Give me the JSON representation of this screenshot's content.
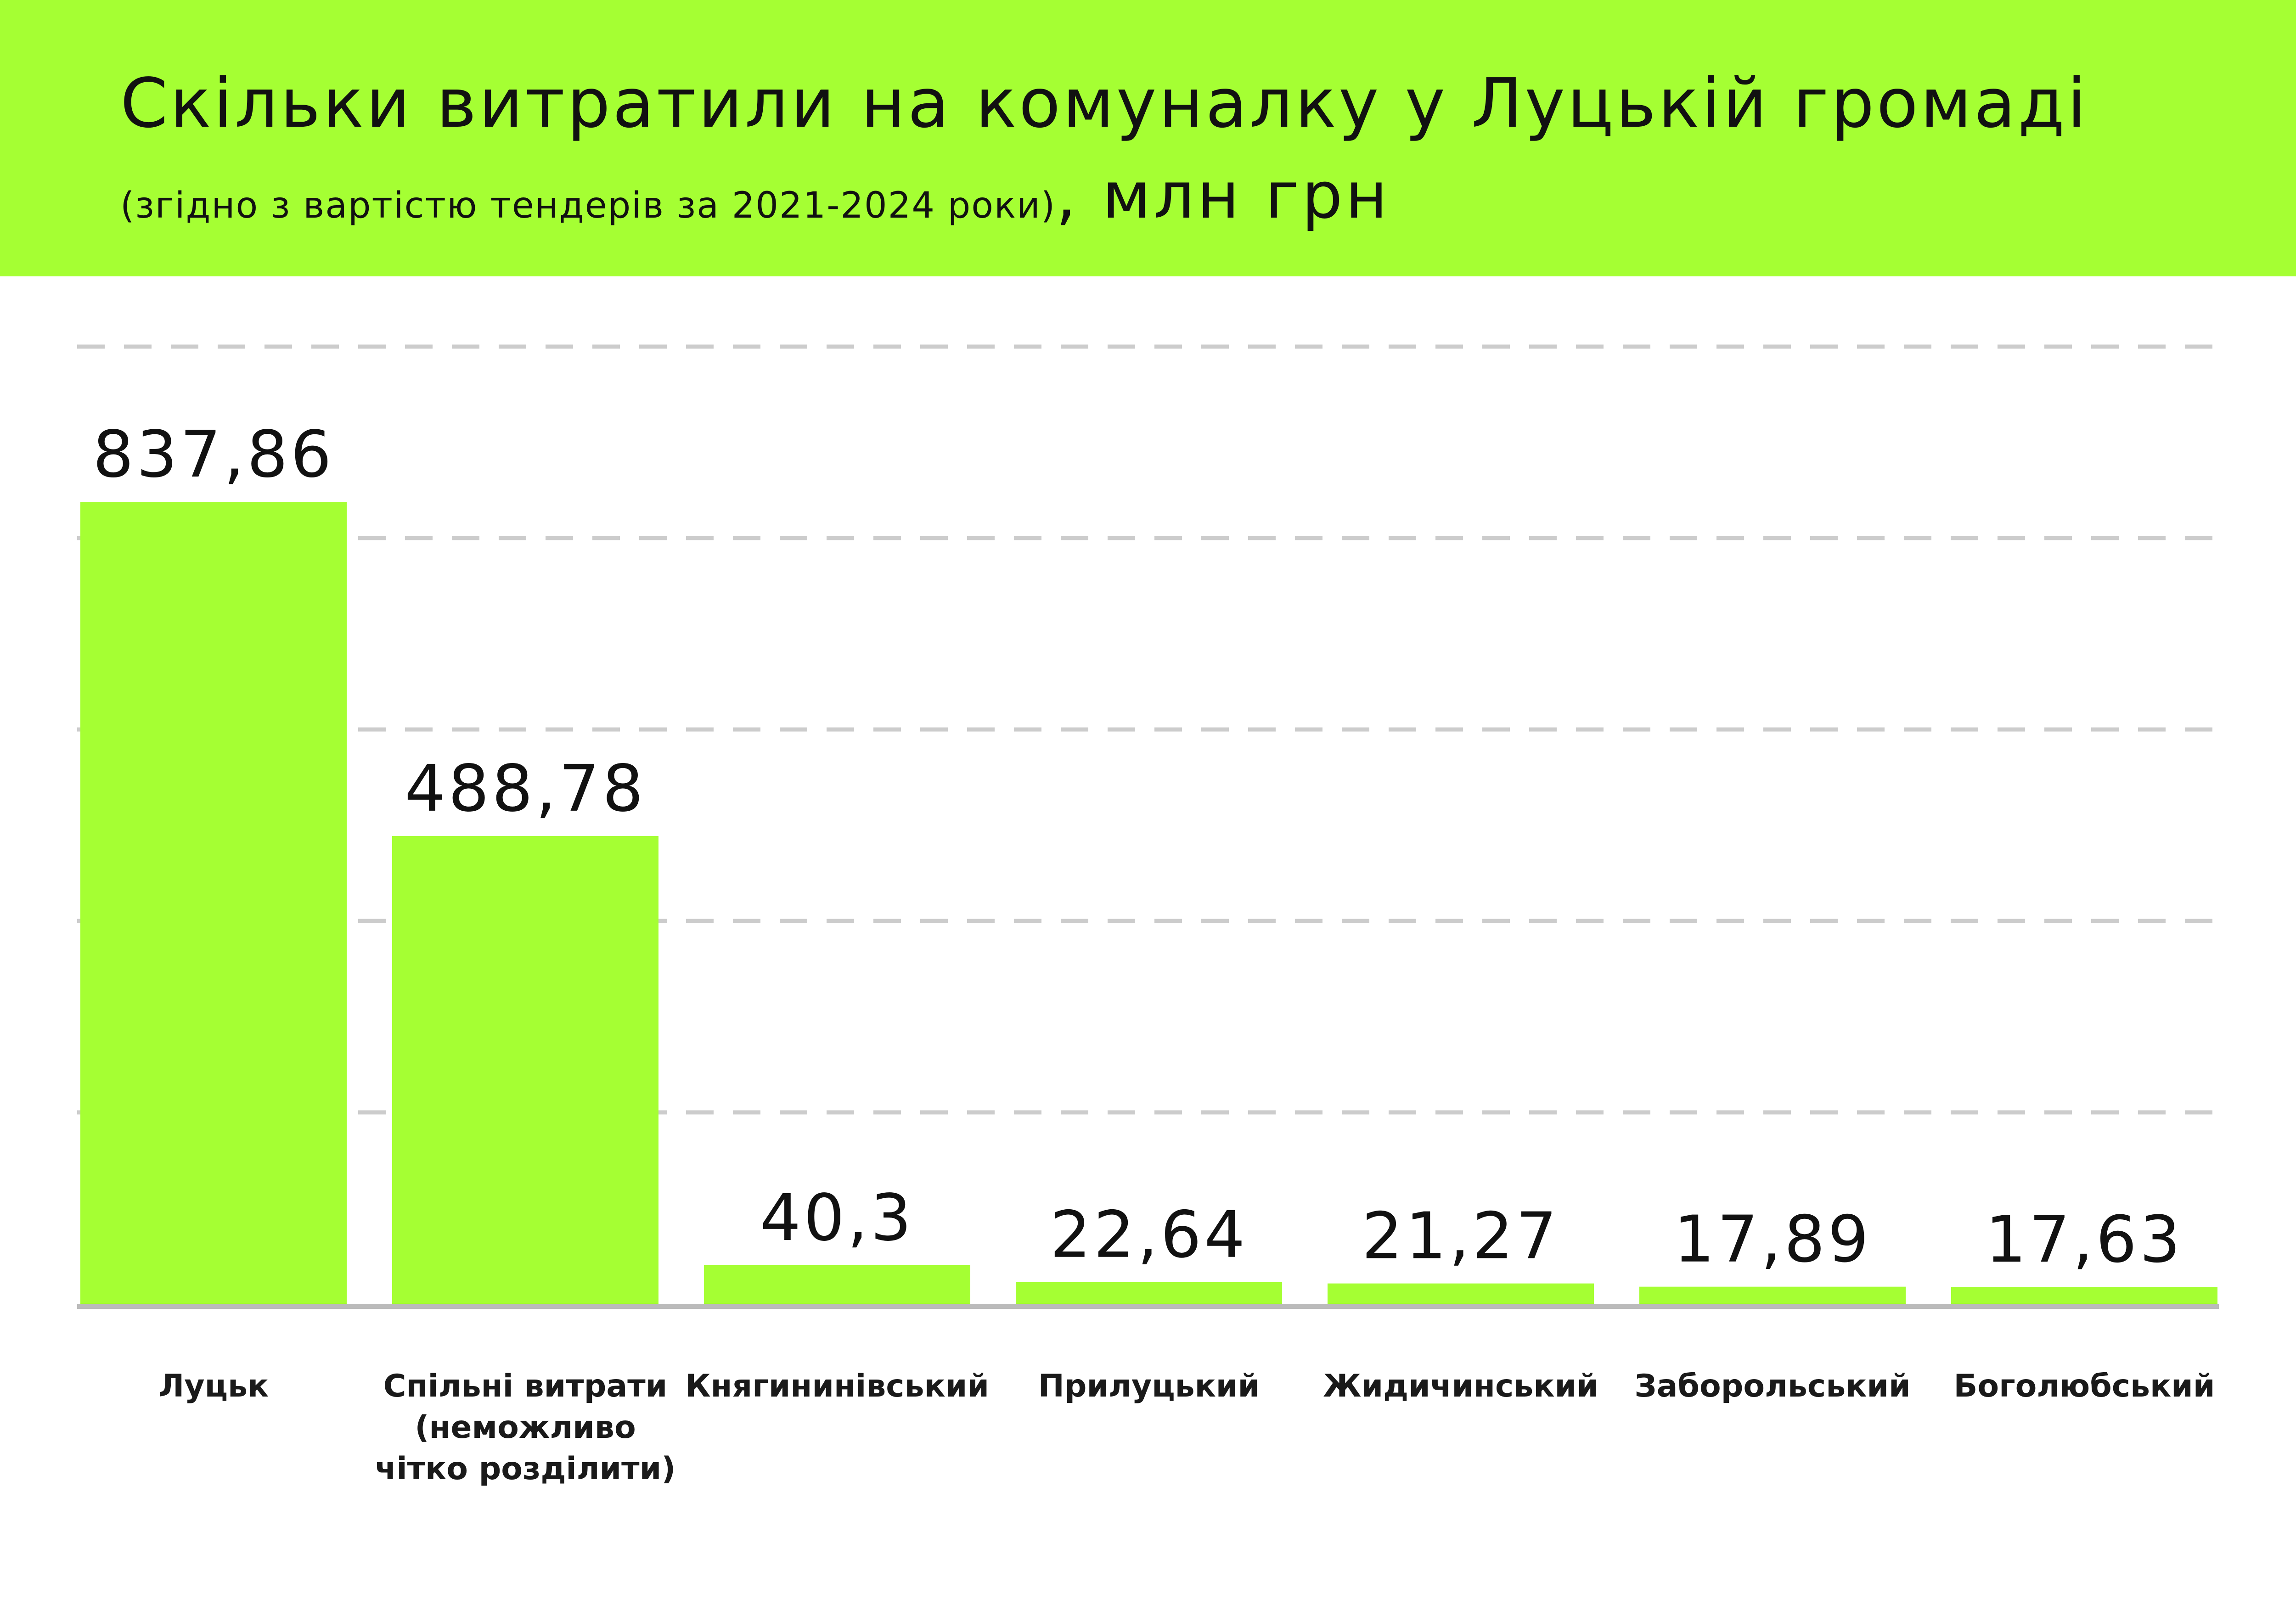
{
  "header": {
    "title": "Скільки витратили на комуналку у Луцькій громаді",
    "subtitle_note": "(згідно з вартістю тендерів за 2021-2024 роки)",
    "subtitle_unit": ", млн грн"
  },
  "colors": {
    "accent": "#a5ff33",
    "grid": "#cccccc",
    "text": "#111111"
  },
  "chart_data": {
    "type": "bar",
    "title": "Скільки витратили на комуналку у Луцькій громаді",
    "subtitle": "(згідно з вартістю тендерів за 2021-2024 роки), млн грн",
    "categories": [
      "Луцьк",
      "Спільні витрати (неможливо чітко розділити)",
      "Княгининівський",
      "Прилуцький",
      "Жидичинський",
      "Заборольський",
      "Боголюбський"
    ],
    "values": [
      837.86,
      488.78,
      40.3,
      22.64,
      21.27,
      17.89,
      17.63
    ],
    "value_labels": [
      "837,86",
      "488,78",
      "40,3",
      "22,64",
      "21,27",
      "17,89",
      "17,63"
    ],
    "xlabel": "",
    "ylabel": "",
    "ylim": [
      0,
      1000
    ],
    "grid": true,
    "grid_style": "dashed",
    "legend": "none",
    "bar_color": "#a5ff33"
  }
}
